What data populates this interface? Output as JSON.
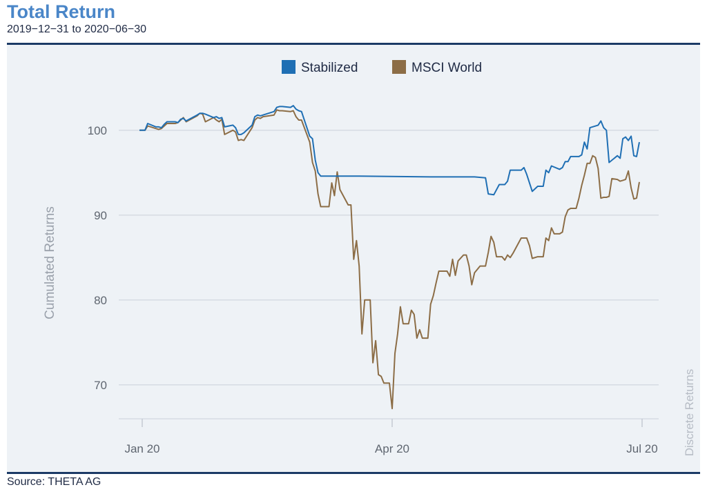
{
  "header": {
    "title": "Total Return",
    "subtitle": "2019−12−31 to 2020−06−30"
  },
  "footer": {
    "source": "Source: THETA AG"
  },
  "colors": {
    "stabilized": "#1f6fb4",
    "msci": "#8c6d46",
    "rule": "#1b3a66",
    "grid": "#d6dbe3"
  },
  "chart_data": {
    "type": "line",
    "title": "Total Return",
    "subtitle": "2019−12−31 to 2020−06−30",
    "ylabel": "Cumulated Returns",
    "side_label": "Discrete Returns",
    "ylim": [
      66,
      106
    ],
    "y_ticks": [
      70,
      80,
      90,
      100
    ],
    "x_range": [
      "2019-12-31",
      "2020-06-30"
    ],
    "x_ticks": [
      {
        "date": "2020-01-01",
        "label": "Jan 20"
      },
      {
        "date": "2020-04-01",
        "label": "Apr 20"
      },
      {
        "date": "2020-07-01",
        "label": "Jul 20"
      }
    ],
    "legend_position": "top-center",
    "grid": true,
    "series": [
      {
        "name": "Stabilized",
        "color": "#1f6fb4",
        "points": [
          [
            "2019-12-31",
            100.0
          ],
          [
            "2020-01-02",
            100.0
          ],
          [
            "2020-01-03",
            100.8
          ],
          [
            "2020-01-06",
            100.4
          ],
          [
            "2020-01-07",
            100.4
          ],
          [
            "2020-01-08",
            100.3
          ],
          [
            "2020-01-09",
            100.7
          ],
          [
            "2020-01-10",
            101.0
          ],
          [
            "2020-01-13",
            101.0
          ],
          [
            "2020-01-14",
            100.9
          ],
          [
            "2020-01-15",
            101.3
          ],
          [
            "2020-01-16",
            101.4
          ],
          [
            "2020-01-17",
            101.1
          ],
          [
            "2020-01-21",
            101.8
          ],
          [
            "2020-01-22",
            102.0
          ],
          [
            "2020-01-23",
            102.0
          ],
          [
            "2020-01-24",
            101.9
          ],
          [
            "2020-01-27",
            101.5
          ],
          [
            "2020-01-28",
            101.6
          ],
          [
            "2020-01-29",
            101.4
          ],
          [
            "2020-01-30",
            101.5
          ],
          [
            "2020-01-31",
            100.4
          ],
          [
            "2020-02-03",
            100.6
          ],
          [
            "2020-02-04",
            100.3
          ],
          [
            "2020-02-05",
            99.5
          ],
          [
            "2020-02-06",
            99.5
          ],
          [
            "2020-02-07",
            99.7
          ],
          [
            "2020-02-10",
            100.6
          ],
          [
            "2020-02-11",
            101.6
          ],
          [
            "2020-02-12",
            101.8
          ],
          [
            "2020-02-13",
            101.7
          ],
          [
            "2020-02-14",
            101.8
          ],
          [
            "2020-02-18",
            102.2
          ],
          [
            "2020-02-19",
            102.7
          ],
          [
            "2020-02-20",
            102.8
          ],
          [
            "2020-02-21",
            102.8
          ],
          [
            "2020-02-24",
            102.7
          ],
          [
            "2020-02-25",
            102.9
          ],
          [
            "2020-02-26",
            102.5
          ],
          [
            "2020-02-27",
            102.3
          ],
          [
            "2020-02-28",
            102.2
          ],
          [
            "2020-03-02",
            99.3
          ],
          [
            "2020-03-03",
            99.0
          ],
          [
            "2020-03-04",
            96.5
          ],
          [
            "2020-03-05",
            95.0
          ],
          [
            "2020-03-06",
            94.6
          ],
          [
            "2020-03-09",
            94.6
          ],
          [
            "2020-03-20",
            94.6
          ],
          [
            "2020-04-15",
            94.5
          ],
          [
            "2020-05-01",
            94.5
          ],
          [
            "2020-05-05",
            94.4
          ],
          [
            "2020-05-06",
            92.5
          ],
          [
            "2020-05-08",
            92.4
          ],
          [
            "2020-05-10",
            93.6
          ],
          [
            "2020-05-12",
            93.6
          ],
          [
            "2020-05-13",
            94.0
          ],
          [
            "2020-05-14",
            95.3
          ],
          [
            "2020-05-18",
            95.3
          ],
          [
            "2020-05-19",
            95.6
          ],
          [
            "2020-05-20",
            94.8
          ],
          [
            "2020-05-22",
            92.8
          ],
          [
            "2020-05-24",
            93.4
          ],
          [
            "2020-05-26",
            93.4
          ],
          [
            "2020-05-27",
            95.3
          ],
          [
            "2020-05-28",
            95.0
          ],
          [
            "2020-05-29",
            95.8
          ],
          [
            "2020-06-01",
            95.4
          ],
          [
            "2020-06-02",
            95.6
          ],
          [
            "2020-06-03",
            96.3
          ],
          [
            "2020-06-04",
            96.3
          ],
          [
            "2020-06-05",
            96.9
          ],
          [
            "2020-06-08",
            96.9
          ],
          [
            "2020-06-09",
            97.1
          ],
          [
            "2020-06-10",
            98.6
          ],
          [
            "2020-06-11",
            97.8
          ],
          [
            "2020-06-12",
            100.3
          ],
          [
            "2020-06-15",
            100.6
          ],
          [
            "2020-06-16",
            101.1
          ],
          [
            "2020-06-17",
            100.3
          ],
          [
            "2020-06-18",
            100.0
          ],
          [
            "2020-06-19",
            96.2
          ],
          [
            "2020-06-22",
            97.0
          ],
          [
            "2020-06-23",
            96.7
          ],
          [
            "2020-06-24",
            99.0
          ],
          [
            "2020-06-25",
            99.2
          ],
          [
            "2020-06-26",
            98.8
          ],
          [
            "2020-06-27",
            99.3
          ],
          [
            "2020-06-28",
            97.0
          ],
          [
            "2020-06-29",
            96.9
          ],
          [
            "2020-06-30",
            98.6
          ]
        ]
      },
      {
        "name": "MSCI World",
        "color": "#8c6d46",
        "points": [
          [
            "2019-12-31",
            100.0
          ],
          [
            "2020-01-02",
            100.0
          ],
          [
            "2020-01-03",
            100.5
          ],
          [
            "2020-01-06",
            100.2
          ],
          [
            "2020-01-07",
            100.1
          ],
          [
            "2020-01-08",
            100.2
          ],
          [
            "2020-01-09",
            100.5
          ],
          [
            "2020-01-10",
            100.8
          ],
          [
            "2020-01-13",
            100.8
          ],
          [
            "2020-01-14",
            100.9
          ],
          [
            "2020-01-15",
            101.2
          ],
          [
            "2020-01-16",
            101.5
          ],
          [
            "2020-01-17",
            101.0
          ],
          [
            "2020-01-21",
            101.7
          ],
          [
            "2020-01-22",
            102.0
          ],
          [
            "2020-01-23",
            101.9
          ],
          [
            "2020-01-24",
            101.0
          ],
          [
            "2020-01-27",
            101.5
          ],
          [
            "2020-01-28",
            101.2
          ],
          [
            "2020-01-29",
            101.0
          ],
          [
            "2020-01-30",
            101.3
          ],
          [
            "2020-01-31",
            99.5
          ],
          [
            "2020-02-03",
            100.0
          ],
          [
            "2020-02-04",
            99.8
          ],
          [
            "2020-02-05",
            98.8
          ],
          [
            "2020-02-06",
            98.9
          ],
          [
            "2020-02-07",
            98.8
          ],
          [
            "2020-02-10",
            100.3
          ],
          [
            "2020-02-11",
            101.2
          ],
          [
            "2020-02-12",
            101.5
          ],
          [
            "2020-02-13",
            101.4
          ],
          [
            "2020-02-14",
            101.6
          ],
          [
            "2020-02-18",
            101.8
          ],
          [
            "2020-02-19",
            102.4
          ],
          [
            "2020-02-20",
            102.3
          ],
          [
            "2020-02-21",
            102.3
          ],
          [
            "2020-02-24",
            102.2
          ],
          [
            "2020-02-25",
            102.3
          ],
          [
            "2020-02-26",
            101.6
          ],
          [
            "2020-02-27",
            101.2
          ],
          [
            "2020-02-28",
            101.2
          ],
          [
            "2020-03-02",
            98.6
          ],
          [
            "2020-03-03",
            96.2
          ],
          [
            "2020-03-04",
            95.2
          ],
          [
            "2020-03-05",
            92.5
          ],
          [
            "2020-03-06",
            91.0
          ],
          [
            "2020-03-09",
            91.0
          ],
          [
            "2020-03-10",
            93.8
          ],
          [
            "2020-03-11",
            92.3
          ],
          [
            "2020-03-12",
            95.1
          ],
          [
            "2020-03-13",
            93.0
          ],
          [
            "2020-03-16",
            91.2
          ],
          [
            "2020-03-17",
            91.2
          ],
          [
            "2020-03-18",
            84.8
          ],
          [
            "2020-03-19",
            87.0
          ],
          [
            "2020-03-20",
            84.0
          ],
          [
            "2020-03-21",
            76.0
          ],
          [
            "2020-03-22",
            80.0
          ],
          [
            "2020-03-24",
            80.0
          ],
          [
            "2020-03-25",
            72.6
          ],
          [
            "2020-03-26",
            75.2
          ],
          [
            "2020-03-27",
            71.2
          ],
          [
            "2020-03-28",
            71.0
          ],
          [
            "2020-03-29",
            70.2
          ],
          [
            "2020-03-30",
            70.2
          ],
          [
            "2020-03-31",
            70.2
          ],
          [
            "2020-04-01",
            67.2
          ],
          [
            "2020-04-02",
            73.7
          ],
          [
            "2020-04-03",
            76.0
          ],
          [
            "2020-04-04",
            79.2
          ],
          [
            "2020-04-05",
            77.2
          ],
          [
            "2020-04-06",
            77.2
          ],
          [
            "2020-04-07",
            77.2
          ],
          [
            "2020-04-08",
            78.8
          ],
          [
            "2020-04-09",
            78.3
          ],
          [
            "2020-04-10",
            75.5
          ],
          [
            "2020-04-11",
            76.5
          ],
          [
            "2020-04-12",
            75.5
          ],
          [
            "2020-04-14",
            75.5
          ],
          [
            "2020-04-15",
            79.5
          ],
          [
            "2020-04-16",
            80.5
          ],
          [
            "2020-04-17",
            82.0
          ],
          [
            "2020-04-18",
            83.4
          ],
          [
            "2020-04-21",
            83.4
          ],
          [
            "2020-04-22",
            82.8
          ],
          [
            "2020-04-23",
            84.8
          ],
          [
            "2020-04-24",
            82.9
          ],
          [
            "2020-04-25",
            84.6
          ],
          [
            "2020-04-27",
            85.3
          ],
          [
            "2020-04-28",
            85.3
          ],
          [
            "2020-04-29",
            84.0
          ],
          [
            "2020-04-30",
            81.8
          ],
          [
            "2020-05-01",
            83.2
          ],
          [
            "2020-05-03",
            84.0
          ],
          [
            "2020-05-05",
            84.0
          ],
          [
            "2020-05-06",
            85.6
          ],
          [
            "2020-05-07",
            87.5
          ],
          [
            "2020-05-08",
            86.8
          ],
          [
            "2020-05-09",
            85.1
          ],
          [
            "2020-05-11",
            85.1
          ],
          [
            "2020-05-12",
            84.7
          ],
          [
            "2020-05-13",
            85.3
          ],
          [
            "2020-05-14",
            85.0
          ],
          [
            "2020-05-15",
            85.5
          ],
          [
            "2020-05-18",
            87.3
          ],
          [
            "2020-05-20",
            87.3
          ],
          [
            "2020-05-21",
            86.4
          ],
          [
            "2020-05-22",
            84.9
          ],
          [
            "2020-05-24",
            85.1
          ],
          [
            "2020-05-26",
            85.1
          ],
          [
            "2020-05-27",
            87.3
          ],
          [
            "2020-05-28",
            87.0
          ],
          [
            "2020-05-29",
            88.5
          ],
          [
            "2020-05-30",
            87.8
          ],
          [
            "2020-06-01",
            87.8
          ],
          [
            "2020-06-02",
            88.0
          ],
          [
            "2020-06-03",
            89.8
          ],
          [
            "2020-06-04",
            90.6
          ],
          [
            "2020-06-05",
            90.8
          ],
          [
            "2020-06-07",
            90.8
          ],
          [
            "2020-06-08",
            92.0
          ],
          [
            "2020-06-09",
            93.5
          ],
          [
            "2020-06-10",
            94.7
          ],
          [
            "2020-06-11",
            96.1
          ],
          [
            "2020-06-12",
            96.1
          ],
          [
            "2020-06-13",
            97.0
          ],
          [
            "2020-06-14",
            96.8
          ],
          [
            "2020-06-15",
            95.5
          ],
          [
            "2020-06-16",
            92.0
          ],
          [
            "2020-06-17",
            92.1
          ],
          [
            "2020-06-18",
            92.1
          ],
          [
            "2020-06-19",
            92.2
          ],
          [
            "2020-06-20",
            94.3
          ],
          [
            "2020-06-22",
            94.2
          ],
          [
            "2020-06-23",
            94.0
          ],
          [
            "2020-06-24",
            94.1
          ],
          [
            "2020-06-25",
            94.2
          ],
          [
            "2020-06-26",
            95.2
          ],
          [
            "2020-06-27",
            93.2
          ],
          [
            "2020-06-28",
            91.9
          ],
          [
            "2020-06-29",
            92.0
          ],
          [
            "2020-06-30",
            93.9
          ]
        ]
      }
    ]
  }
}
